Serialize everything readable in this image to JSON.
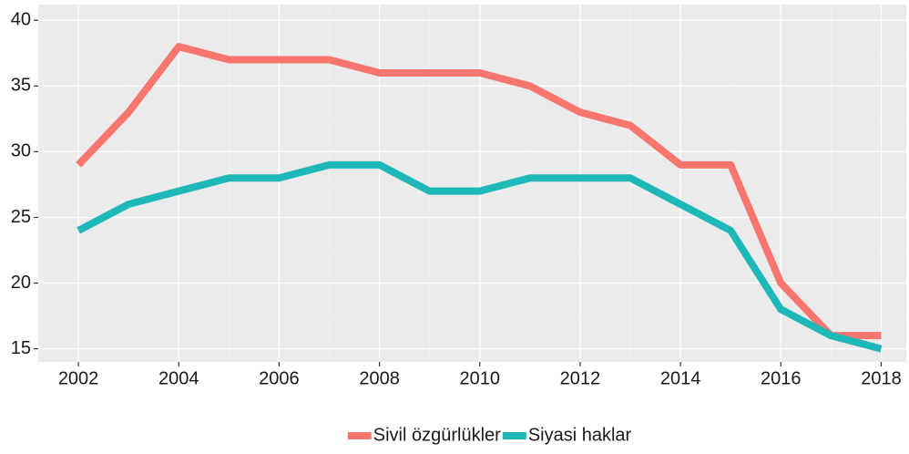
{
  "chart_data": {
    "type": "line",
    "x": [
      2002,
      2003,
      2004,
      2005,
      2006,
      2007,
      2008,
      2009,
      2010,
      2011,
      2012,
      2013,
      2014,
      2015,
      2016,
      2017,
      2018
    ],
    "series": [
      {
        "name": "Sivil özgürlükler",
        "color": "#f8766d",
        "values": [
          29,
          33,
          38,
          37,
          37,
          37,
          36,
          36,
          36,
          35,
          33,
          32,
          29,
          29,
          20,
          16,
          16
        ]
      },
      {
        "name": "Siyasi haklar",
        "color": "#1fb8b8",
        "values": [
          24,
          26,
          27,
          28,
          28,
          29,
          29,
          27,
          27,
          28,
          28,
          28,
          26,
          24,
          18,
          16,
          15
        ]
      }
    ],
    "xlim": [
      2001.2,
      2018.5
    ],
    "xticks": [
      2002,
      2004,
      2006,
      2008,
      2010,
      2012,
      2014,
      2016,
      2018
    ],
    "ylim": [
      14,
      41.2
    ],
    "yticks": [
      15,
      20,
      25,
      30,
      35,
      40
    ],
    "grid": true,
    "legend": "bottom"
  }
}
